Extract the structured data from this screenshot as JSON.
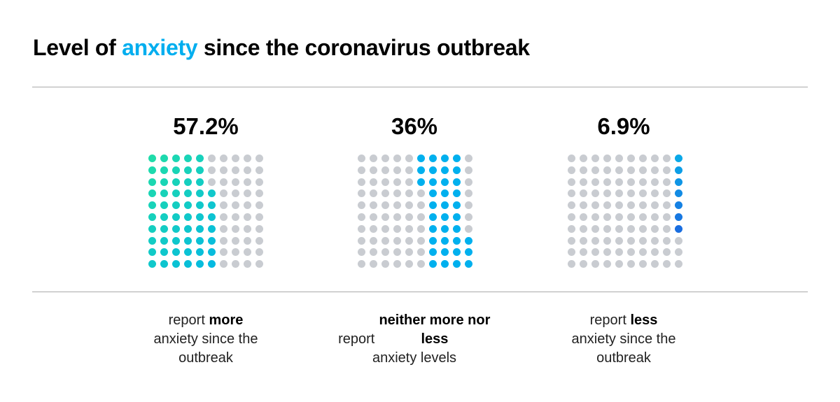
{
  "title": {
    "pre": "Level of ",
    "highlight": "anxiety",
    "post": " since the coronavirus outbreak"
  },
  "chart_data": {
    "type": "waffle",
    "grid": "10x10",
    "panels": [
      {
        "label": "57.2%",
        "value": 57.2,
        "dots": 57,
        "caption_pre": "report ",
        "caption_bold": "more",
        "caption_post": "anxiety since the outbreak",
        "colors": [
          "#1fdcaa",
          "#00b3ec"
        ]
      },
      {
        "label": "36%",
        "value": 36,
        "dots": 36,
        "caption_pre": "report ",
        "caption_bold": "neither more nor less",
        "caption_post": "anxiety levels",
        "colors": [
          "#00b0ee",
          "#00b0ee"
        ]
      },
      {
        "label": "6.9%",
        "value": 6.9,
        "dots": 7,
        "caption_pre": "report ",
        "caption_bold": "less",
        "caption_post": "anxiety since the outbreak",
        "colors": [
          "#0aa8e8",
          "#1a6ee0"
        ]
      }
    ],
    "empty_color": "#c9ccd1"
  }
}
